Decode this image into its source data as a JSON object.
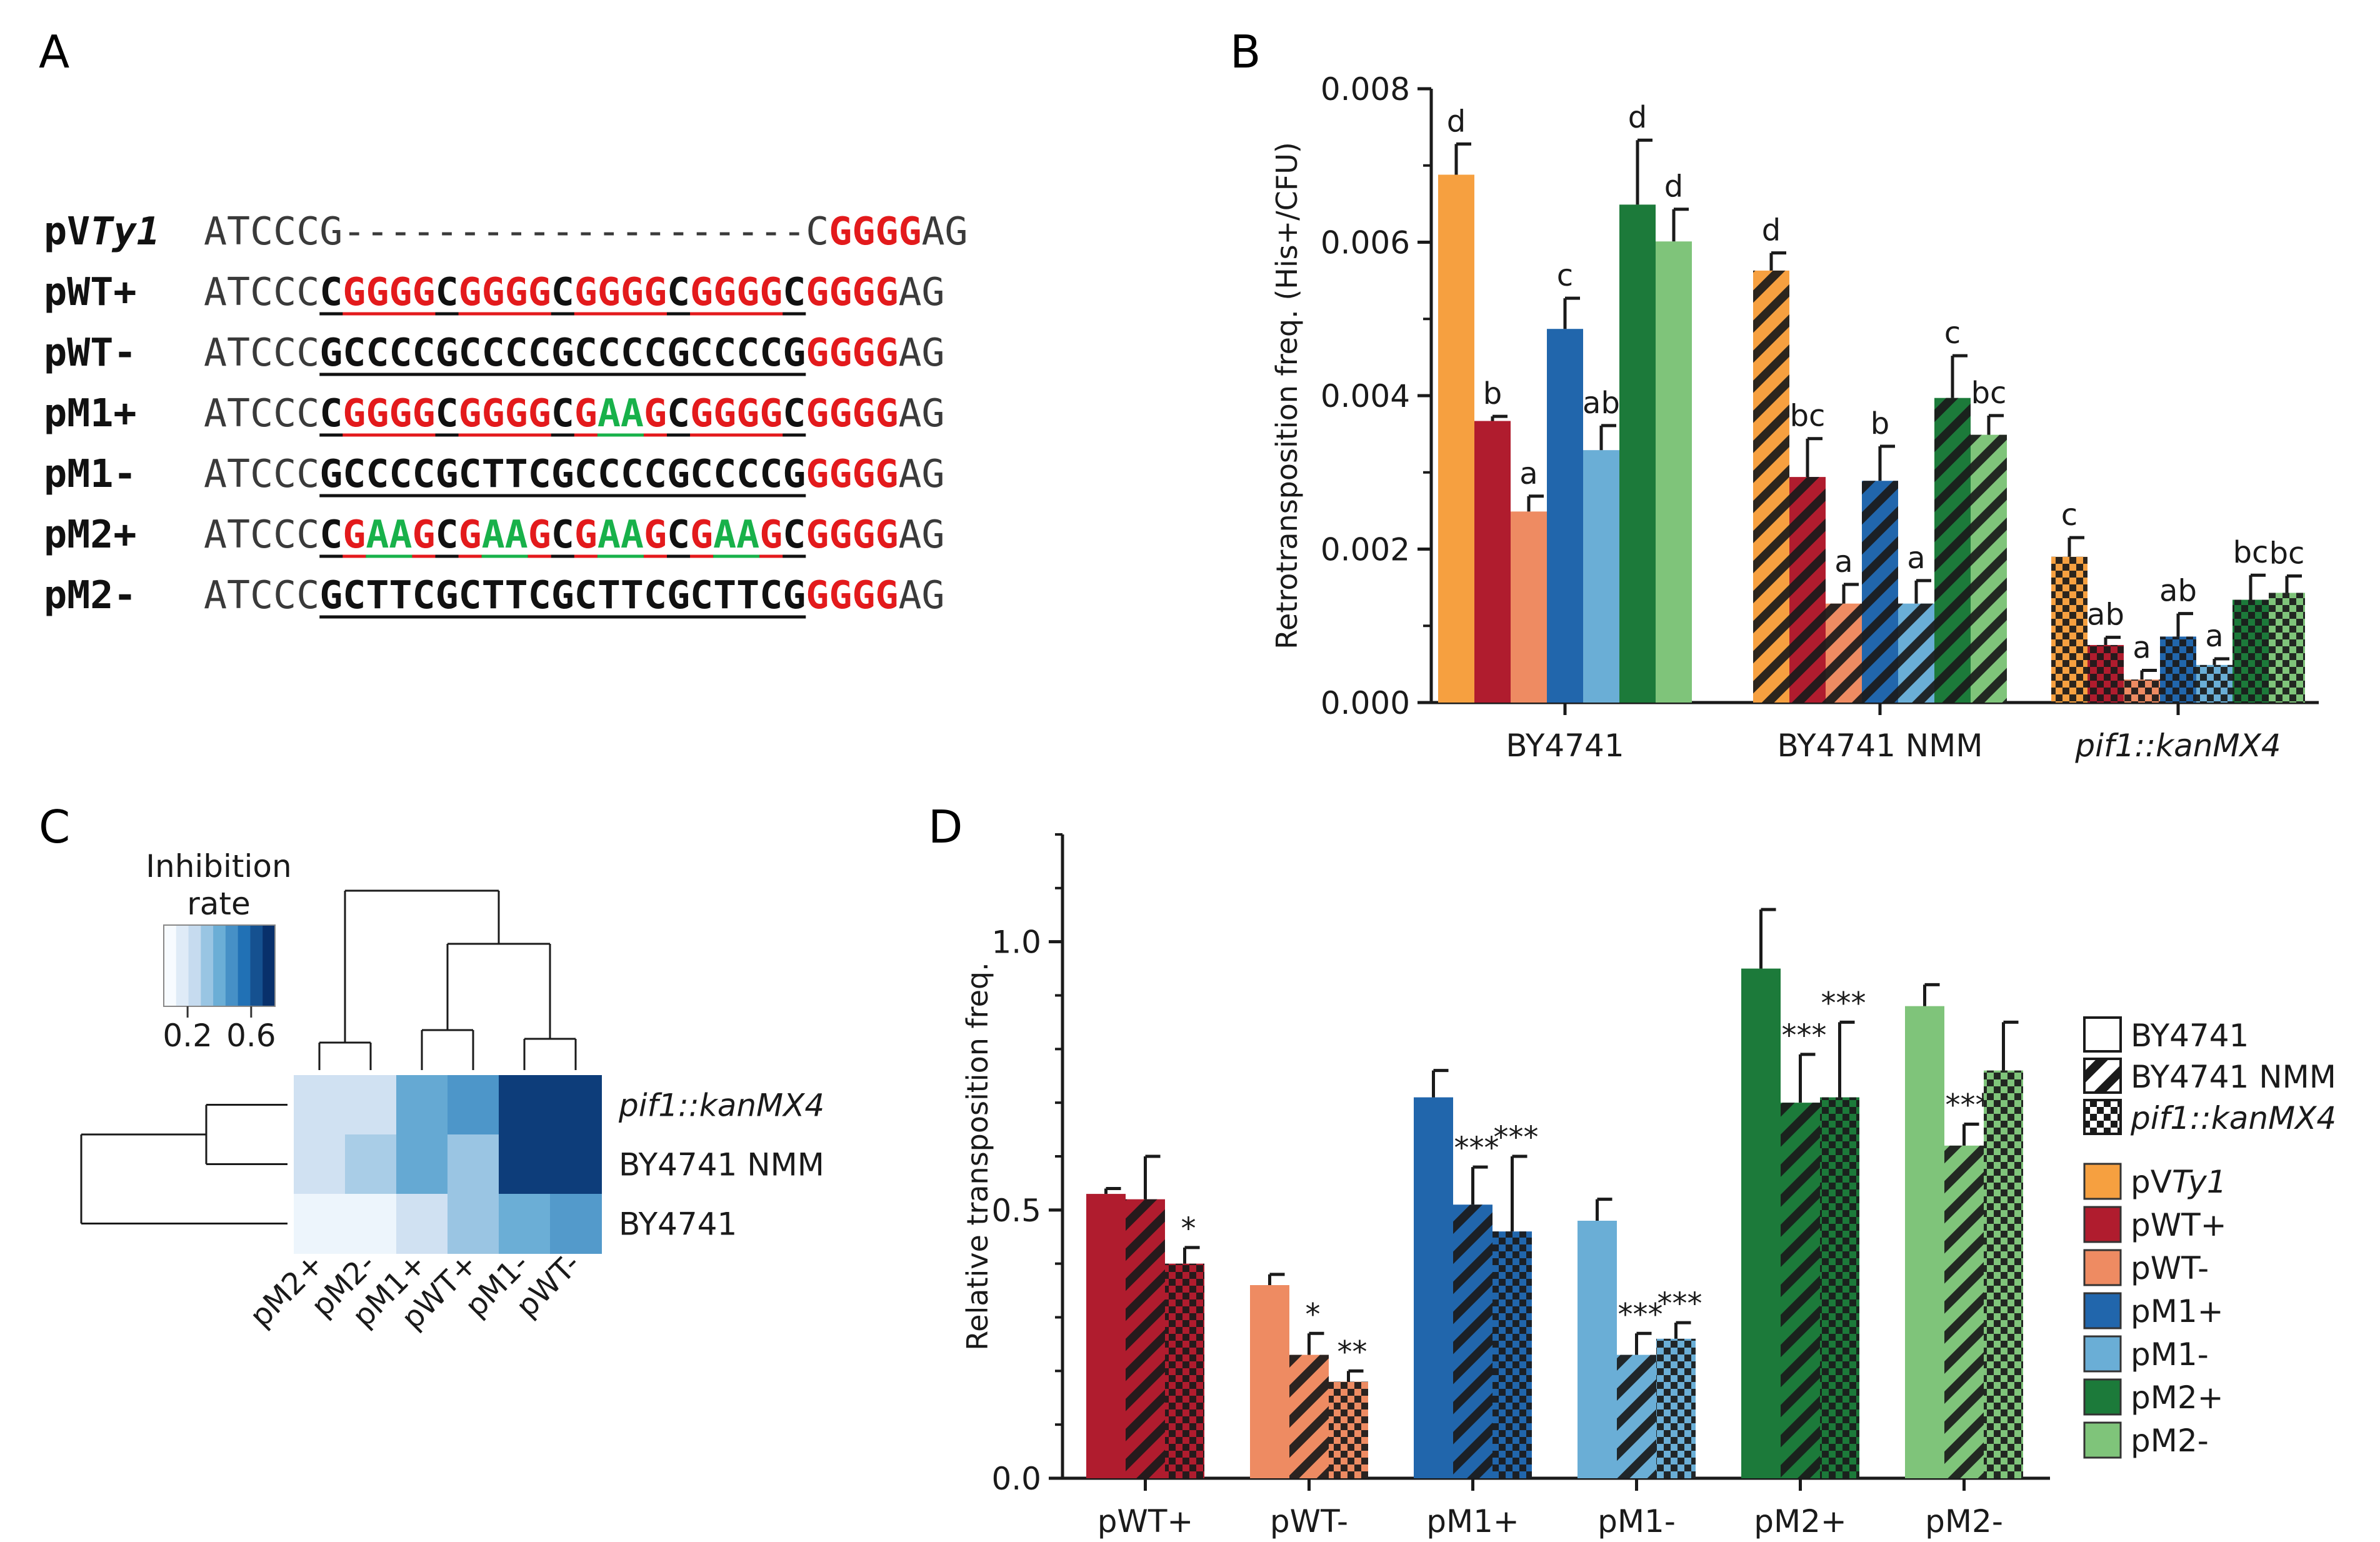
{
  "panel_labels": {
    "a": "A",
    "b": "B",
    "c": "C",
    "d": "D"
  },
  "colors": {
    "pVTy1": "#f6a040",
    "pWT+": "#b01c2e",
    "pWT-": "#ee8b62",
    "pM1+": "#2166ac",
    "pM1-": "#6aaed6",
    "pM2+": "#1c7a3a",
    "pM2-": "#7fc47a",
    "red": "#e31a1c",
    "green": "#18b14a"
  },
  "panel_a": {
    "rows": [
      {
        "label_pre": "pV",
        "label_em": "Ty1",
        "segments": [
          [
            "ATCCCG",
            "n"
          ],
          [
            "--------------------",
            "n"
          ],
          [
            "C",
            "n"
          ],
          [
            "GGGG",
            "r"
          ],
          [
            "AG",
            "n"
          ]
        ]
      },
      {
        "label": "pWT+",
        "segments": [
          [
            "ATCCC",
            "n"
          ],
          [
            "C",
            "k"
          ],
          [
            "GGGG",
            "r"
          ],
          [
            "C",
            "k"
          ],
          [
            "GGGG",
            "r"
          ],
          [
            "C",
            "k"
          ],
          [
            "GGGG",
            "r"
          ],
          [
            "C",
            "k"
          ],
          [
            "GGGG",
            "r"
          ],
          [
            "C",
            "k"
          ],
          [
            "GGGG",
            "r"
          ],
          [
            "AG",
            "n"
          ]
        ]
      },
      {
        "label": "pWT-",
        "segments": [
          [
            "ATCCC",
            "n"
          ],
          [
            "GCCCCGCCCCGCCCCGCCCCG",
            "k"
          ],
          [
            "GGGG",
            "r"
          ],
          [
            "AG",
            "n"
          ]
        ]
      },
      {
        "label": "pM1+",
        "segments": [
          [
            "ATCCC",
            "n"
          ],
          [
            "C",
            "k"
          ],
          [
            "GGGG",
            "r"
          ],
          [
            "C",
            "k"
          ],
          [
            "GGGG",
            "r"
          ],
          [
            "C",
            "k"
          ],
          [
            "G",
            "r"
          ],
          [
            "AA",
            "g"
          ],
          [
            "G",
            "r"
          ],
          [
            "C",
            "k"
          ],
          [
            "GGGG",
            "r"
          ],
          [
            "C",
            "k"
          ],
          [
            "GGGG",
            "r"
          ],
          [
            "AG",
            "n"
          ]
        ]
      },
      {
        "label": "pM1-",
        "segments": [
          [
            "ATCCC",
            "n"
          ],
          [
            "GCCCCGCTTCGCCCCGCCCCG",
            "k"
          ],
          [
            "GGGG",
            "r"
          ],
          [
            "AG",
            "n"
          ]
        ]
      },
      {
        "label": "pM2+",
        "segments": [
          [
            "ATCCC",
            "n"
          ],
          [
            "C",
            "k"
          ],
          [
            "G",
            "r"
          ],
          [
            "AA",
            "g"
          ],
          [
            "G",
            "r"
          ],
          [
            "C",
            "k"
          ],
          [
            "G",
            "r"
          ],
          [
            "AA",
            "g"
          ],
          [
            "G",
            "r"
          ],
          [
            "C",
            "k"
          ],
          [
            "G",
            "r"
          ],
          [
            "AA",
            "g"
          ],
          [
            "G",
            "r"
          ],
          [
            "C",
            "k"
          ],
          [
            "G",
            "r"
          ],
          [
            "AA",
            "g"
          ],
          [
            "G",
            "r"
          ],
          [
            "C",
            "k"
          ],
          [
            "GGGG",
            "r"
          ],
          [
            "AG",
            "n"
          ]
        ]
      },
      {
        "label": "pM2-",
        "segments": [
          [
            "ATCCC",
            "n"
          ],
          [
            "GCTTCGCTTCGCTTCGCTTCG",
            "k"
          ],
          [
            "GGGG",
            "r"
          ],
          [
            "AG",
            "n"
          ]
        ]
      }
    ]
  },
  "chart_data": [
    {
      "panel": "B",
      "type": "bar",
      "ylabel": "Retrotransposition freq. (His+/CFU)",
      "ylim": [
        0,
        0.008
      ],
      "yticks": [
        "0.000",
        "0.002",
        "0.004",
        "0.006",
        "0.008"
      ],
      "categories": [
        "BY4741",
        "BY4741 NMM",
        "pif1::kanMX4"
      ],
      "series": [
        {
          "name": "pVTy1",
          "values": [
            0.00688,
            0.00563,
            0.0019
          ],
          "errors": [
            0.0004,
            0.00023,
            0.00025
          ],
          "letters": [
            "d",
            "d",
            "c"
          ]
        },
        {
          "name": "pWT+",
          "values": [
            0.00367,
            0.00294,
            0.00075
          ],
          "errors": [
            6e-05,
            0.0005,
            0.0001
          ],
          "letters": [
            "b",
            "bc",
            "ab"
          ]
        },
        {
          "name": "pWT-",
          "values": [
            0.00249,
            0.00129,
            0.0003
          ],
          "errors": [
            0.0002,
            0.00025,
            0.00012
          ],
          "letters": [
            "a",
            "a",
            "a"
          ]
        },
        {
          "name": "pM1+",
          "values": [
            0.00487,
            0.00289,
            0.00086
          ],
          "errors": [
            0.0004,
            0.00045,
            0.0003
          ],
          "letters": [
            "c",
            "b",
            "ab"
          ]
        },
        {
          "name": "pM1-",
          "values": [
            0.00329,
            0.00129,
            0.00049
          ],
          "errors": [
            0.00032,
            0.0003,
            8e-05
          ],
          "letters": [
            "ab",
            "a",
            "a"
          ]
        },
        {
          "name": "pM2+",
          "values": [
            0.00649,
            0.00397,
            0.00134
          ],
          "errors": [
            0.00084,
            0.00055,
            0.00032
          ],
          "letters": [
            "d",
            "c",
            "bc"
          ]
        },
        {
          "name": "pM2-",
          "values": [
            0.00601,
            0.00349,
            0.00143
          ],
          "errors": [
            0.00042,
            0.00025,
            0.00022
          ],
          "letters": [
            "d",
            "bc",
            "bc"
          ]
        }
      ]
    },
    {
      "panel": "C",
      "type": "heatmap",
      "legend_title_1": "Inhibition",
      "legend_title_2": "rate",
      "legend_ticks": [
        "0.2",
        "0.6"
      ],
      "columns": [
        "pM2+",
        "pM2-",
        "pM1+",
        "pWT+",
        "pM1-",
        "pWT-"
      ],
      "rows": [
        "pif1::kanMX4",
        "BY4741 NMM",
        "BY4741"
      ],
      "values": [
        [
          0.2,
          0.2,
          0.52,
          0.6,
          0.95,
          0.95
        ],
        [
          0.2,
          0.33,
          0.52,
          0.37,
          0.95,
          0.95
        ],
        [
          0.05,
          0.05,
          0.2,
          0.37,
          0.5,
          0.58
        ]
      ]
    },
    {
      "panel": "D",
      "type": "bar",
      "ylabel": "Relative transposition freq.",
      "ylim": [
        0,
        1.2
      ],
      "yticks": [
        "0.0",
        "0.5",
        "1.0"
      ],
      "categories": [
        "pWT+",
        "pWT-",
        "pM1+",
        "pM1-",
        "pM2+",
        "pM2-"
      ],
      "series_names": [
        "BY4741",
        "BY4741 NMM",
        "pif1::kanMX4"
      ],
      "values": [
        [
          0.53,
          0.52,
          0.4
        ],
        [
          0.36,
          0.23,
          0.18
        ],
        [
          0.71,
          0.51,
          0.46
        ],
        [
          0.48,
          0.23,
          0.26
        ],
        [
          0.95,
          0.7,
          0.71
        ],
        [
          0.88,
          0.62,
          0.76
        ]
      ],
      "errors": [
        [
          0.01,
          0.08,
          0.03
        ],
        [
          0.02,
          0.04,
          0.02
        ],
        [
          0.05,
          0.07,
          0.14
        ],
        [
          0.04,
          0.04,
          0.03
        ],
        [
          0.11,
          0.09,
          0.14
        ],
        [
          0.04,
          0.04,
          0.09
        ]
      ],
      "stars": [
        [
          "",
          "",
          "*"
        ],
        [
          "",
          "*",
          "**"
        ],
        [
          "",
          "***",
          "***"
        ],
        [
          "",
          "***",
          "***"
        ],
        [
          "",
          "***",
          "***"
        ],
        [
          "",
          "***",
          ""
        ]
      ],
      "legend_strains": [
        "BY4741",
        "BY4741 NMM",
        "pif1::kanMX4"
      ],
      "legend_plasmids": [
        "pVTy1",
        "pWT+",
        "pWT-",
        "pM1+",
        "pM1-",
        "pM2+",
        "pM2-"
      ]
    }
  ]
}
